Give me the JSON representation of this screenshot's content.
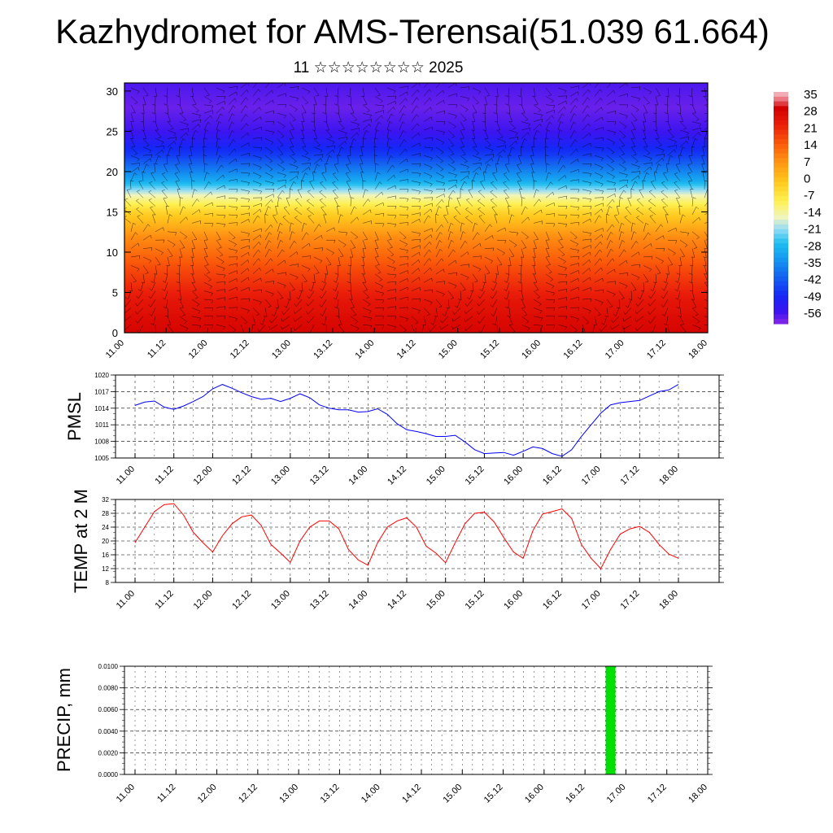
{
  "header": {
    "title": "Kazhydromet for AMS-Terensai(51.039 61.664)",
    "subtitle": "11 ☆☆☆☆☆☆☆☆ 2025"
  },
  "colors": {
    "pmsl_line": "#0000ff",
    "temp_line": "#ff0000",
    "precip_bar": "#00e000"
  },
  "chart_data": [
    {
      "type": "heatmap",
      "title": "",
      "xlabel": "",
      "ylabel": "",
      "x_tick_labels": [
        "11.00",
        "11.12",
        "12.00",
        "12.12",
        "13.00",
        "13.12",
        "14.00",
        "14.12",
        "15.00",
        "15.12",
        "16.00",
        "16.12",
        "17.00",
        "17.12",
        "18.00"
      ],
      "y_ticks": [
        0,
        5,
        10,
        15,
        20,
        25,
        30
      ],
      "ylim": [
        0,
        31
      ],
      "overlay": "wind barbs",
      "colorbar": {
        "labels": [
          "35",
          "28",
          "21",
          "14",
          "7",
          "0",
          "-7",
          "-14",
          "-21",
          "-28",
          "-35",
          "-42",
          "-49",
          "-56"
        ],
        "range": [
          -60,
          38
        ]
      },
      "profile_levels": [
        0,
        4,
        8,
        12,
        15,
        17,
        19,
        22,
        25,
        28,
        31
      ],
      "profile_values": [
        30,
        26,
        18,
        9,
        -2,
        -14,
        -30,
        -45,
        -55,
        -58,
        -56
      ]
    },
    {
      "type": "line",
      "ylabel": "PMSL",
      "x_tick_labels": [
        "11.00",
        "11.12",
        "12.00",
        "12.12",
        "13.00",
        "13.12",
        "14.00",
        "14.12",
        "15.00",
        "15.12",
        "16.00",
        "16.12",
        "17.00",
        "17.12",
        "18.00"
      ],
      "y_ticks": [
        "1005",
        "1008",
        "1011",
        "1014",
        "1017",
        "1020"
      ],
      "ylim": [
        1005,
        1020
      ],
      "series": [
        {
          "values": [
            1014.5,
            1015.1,
            1015.3,
            1014.2,
            1013.8,
            1014.4,
            1015.2,
            1016.1,
            1017.5,
            1018.3,
            1017.6,
            1016.8,
            1016.1,
            1015.6,
            1015.8,
            1015.2,
            1015.8,
            1016.6,
            1015.9,
            1014.6,
            1014.0,
            1013.7,
            1013.7,
            1013.3,
            1013.4,
            1013.9,
            1012.9,
            1011.2,
            1010.1,
            1009.8,
            1009.4,
            1008.9,
            1008.9,
            1009.1,
            1007.9,
            1006.5,
            1005.8,
            1005.9,
            1006.0,
            1005.5,
            1006.2,
            1007.0,
            1006.7,
            1005.8,
            1005.3,
            1006.5,
            1008.9,
            1011.0,
            1013.1,
            1014.6,
            1015.0,
            1015.2,
            1015.4,
            1016.2,
            1017.0,
            1017.3,
            1018.3
          ]
        }
      ]
    },
    {
      "type": "line",
      "ylabel": "TEMP at 2 M",
      "x_tick_labels": [
        "11.00",
        "11.12",
        "12.00",
        "12.12",
        "13.00",
        "13.12",
        "14.00",
        "14.12",
        "15.00",
        "15.12",
        "16.00",
        "16.12",
        "17.00",
        "17.12",
        "18.00"
      ],
      "y_ticks": [
        "8",
        "12",
        "16",
        "20",
        "24",
        "28",
        "32"
      ],
      "ylim": [
        8,
        32
      ],
      "series": [
        {
          "values": [
            19.5,
            24,
            28.5,
            30.5,
            30.8,
            27.5,
            22.5,
            19.5,
            16.8,
            21.5,
            25,
            27,
            27.5,
            24.5,
            19,
            16.5,
            13.8,
            20,
            24,
            25.8,
            25.8,
            23.5,
            17.5,
            14.5,
            13,
            19.5,
            24,
            25.8,
            26.7,
            24,
            18.5,
            16.5,
            13.7,
            19.5,
            25,
            28,
            28.3,
            25.5,
            21,
            16.8,
            15,
            23,
            27.8,
            28.5,
            29.3,
            26.5,
            19,
            15,
            12,
            17.5,
            22,
            23.5,
            24.2,
            22.5,
            19,
            16.2,
            15
          ]
        }
      ]
    },
    {
      "type": "bar",
      "ylabel": "PRECIP, mm",
      "x_tick_labels": [
        "11.00",
        "11.12",
        "12.00",
        "12.12",
        "13.00",
        "13.12",
        "14.00",
        "14.12",
        "15.00",
        "15.12",
        "16.00",
        "16.12",
        "17.00",
        "17.12",
        "18.00"
      ],
      "y_ticks": [
        "0.0000",
        "0.0020",
        "0.0040",
        "0.0060",
        "0.0080",
        "0.0100"
      ],
      "ylim": [
        0,
        0.01
      ],
      "series": [
        {
          "x": [
            46.5
          ],
          "values": [
            0.01
          ]
        }
      ]
    }
  ]
}
